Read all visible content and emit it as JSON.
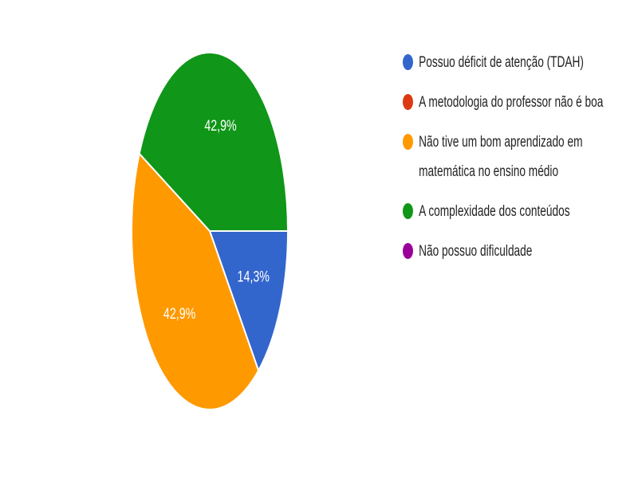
{
  "chart_data": {
    "type": "pie",
    "categories": [
      "Possuo déficit de atenção (TDAH)",
      "A metodologia do professor não é boa",
      "Não tive um bom aprendizado em matemática no ensino médio",
      "A complexidade dos conteúdos",
      "Não possuo dificuldade"
    ],
    "values": [
      14.3,
      0,
      42.9,
      42.9,
      0
    ],
    "value_labels": [
      "14,3%",
      null,
      "42,9%",
      "42,9%",
      null
    ],
    "colors": [
      "#3366cc",
      "#dc3912",
      "#ff9900",
      "#109618",
      "#990099"
    ]
  }
}
